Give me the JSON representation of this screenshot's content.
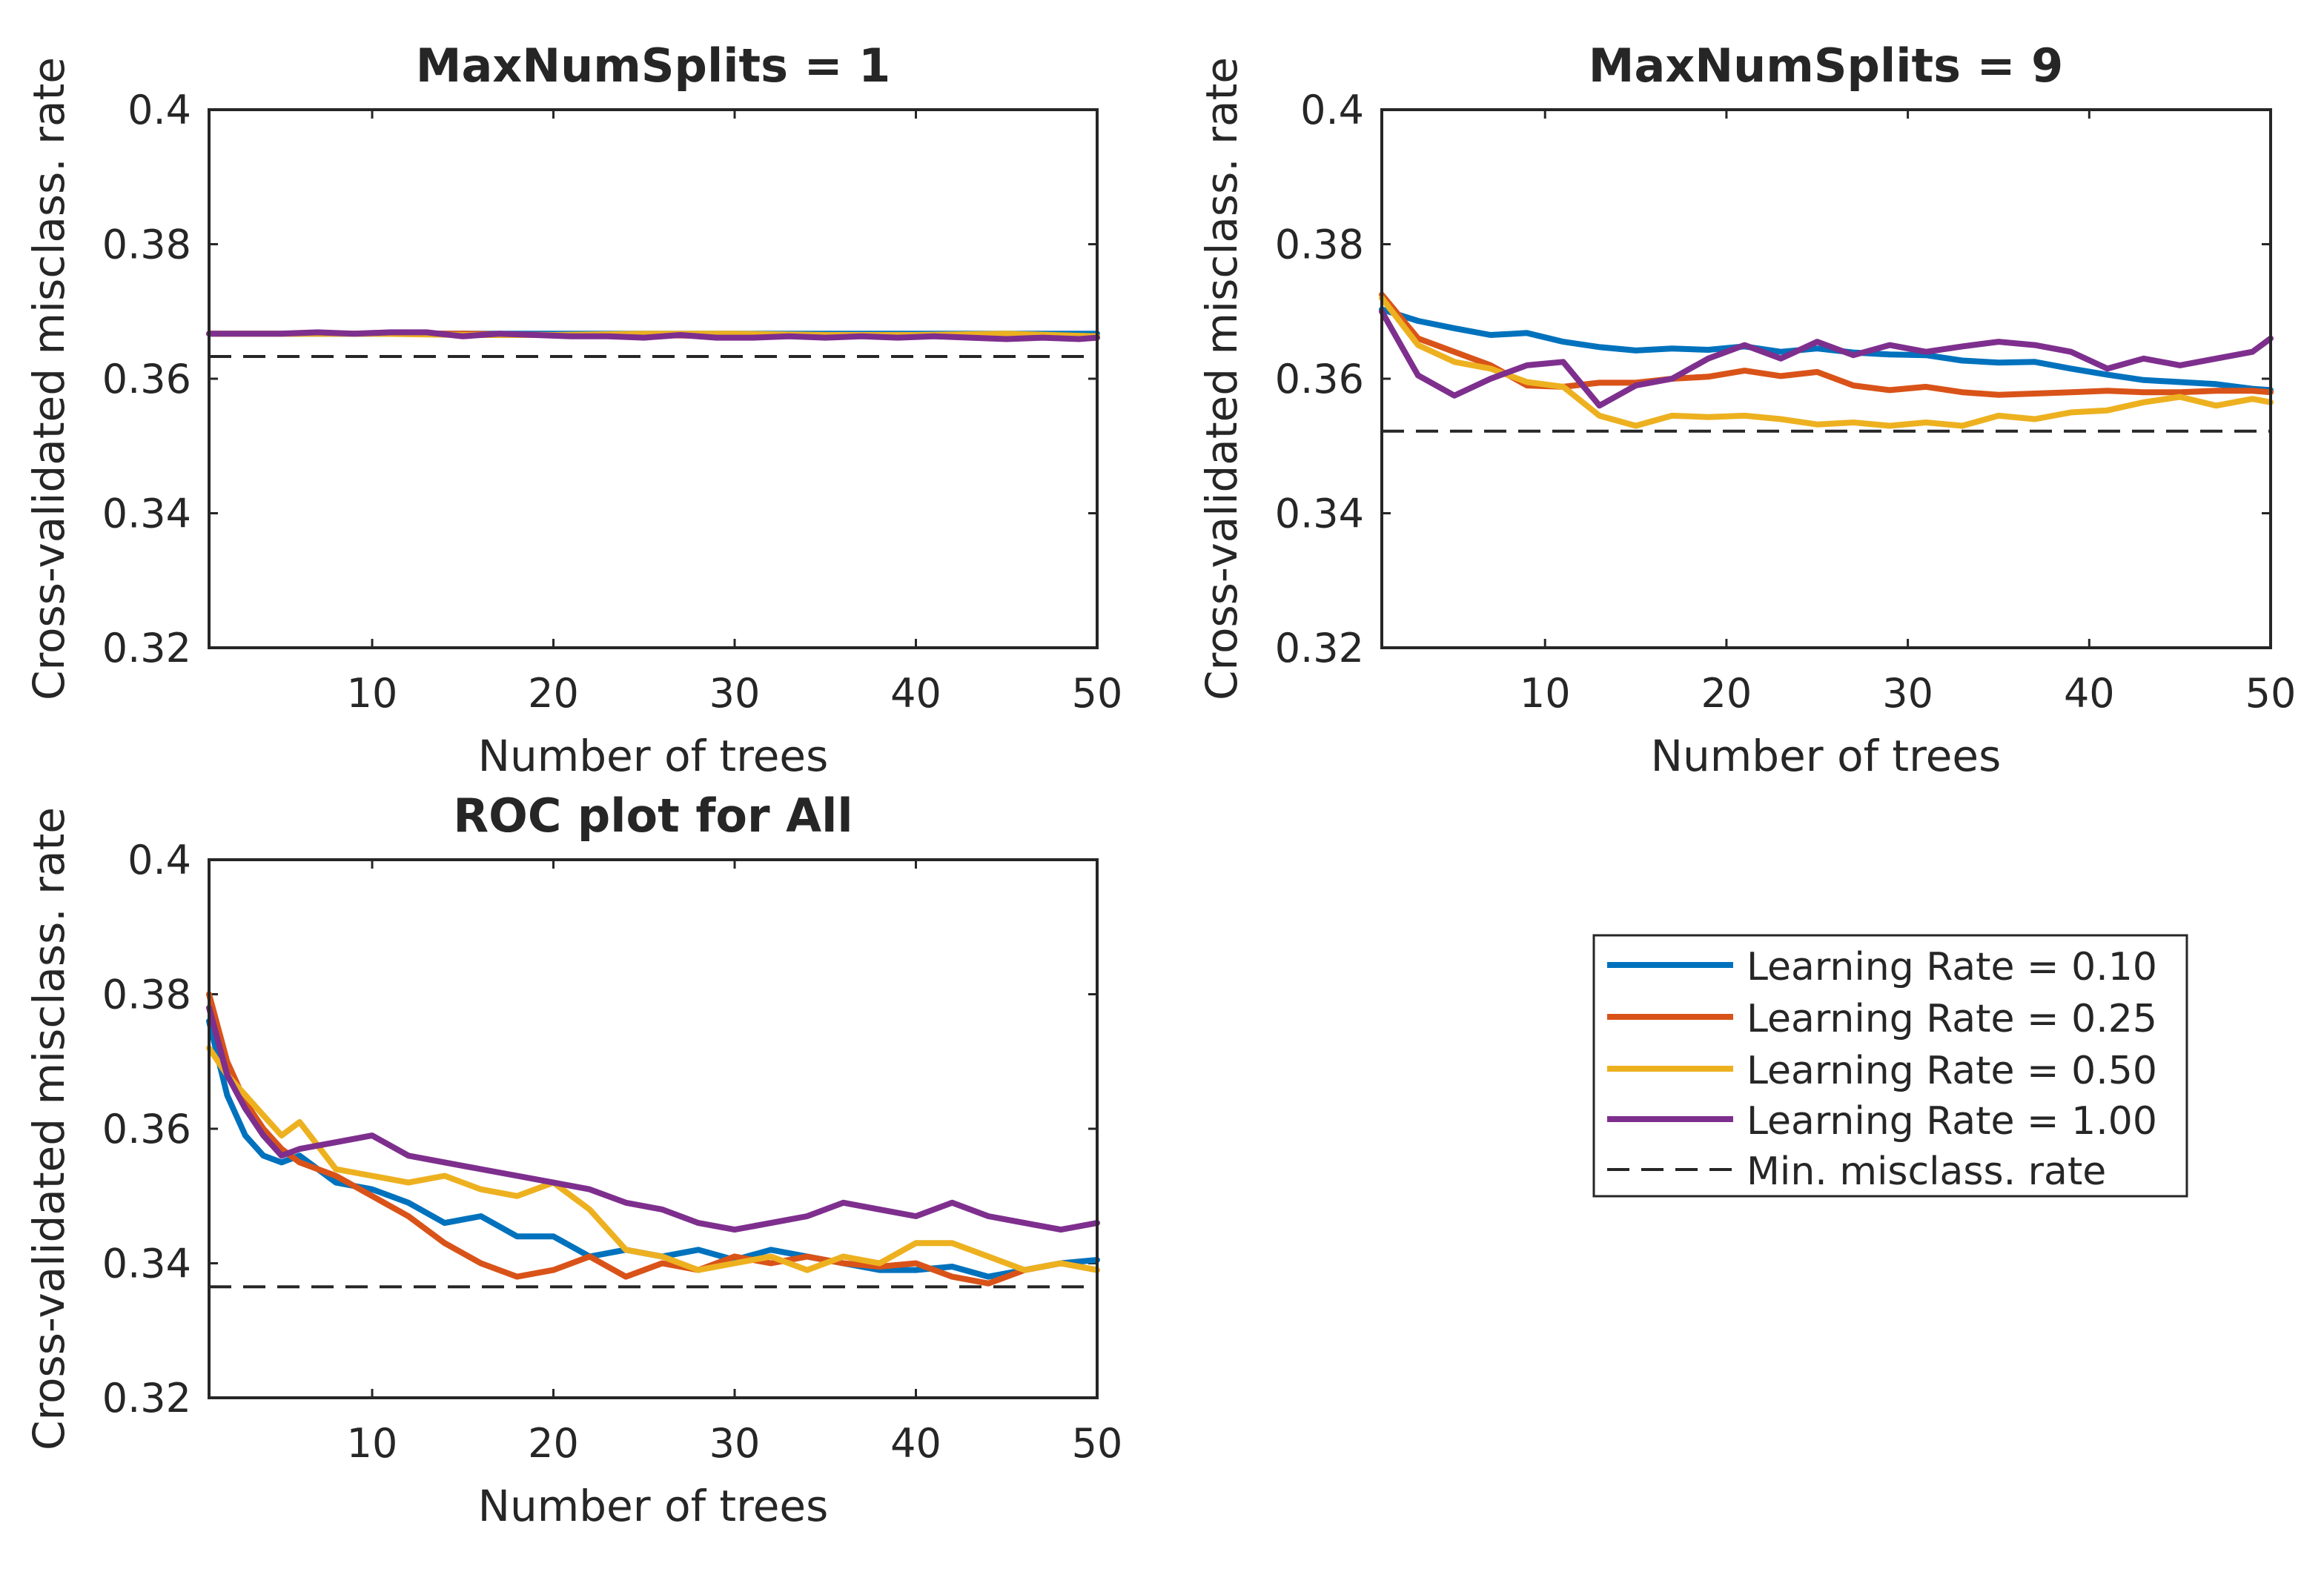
{
  "chart_data": [
    {
      "type": "line",
      "title": "MaxNumSplits = 1",
      "xlabel": "Number of trees",
      "ylabel": "Cross-validated misclass. rate",
      "xlim": [
        1,
        50
      ],
      "ylim": [
        0.32,
        0.4
      ],
      "xticks": [
        10,
        20,
        30,
        40,
        50
      ],
      "yticks": [
        0.32,
        0.34,
        0.36,
        0.38,
        0.4
      ],
      "xtick_labels": [
        "10",
        "20",
        "30",
        "40",
        "50"
      ],
      "ytick_labels": [
        "0.32",
        "0.34",
        "0.36",
        "0.38",
        "0.4"
      ],
      "min_line": 0.3633,
      "series": [
        {
          "name": "Learning Rate = 0.10",
          "color": "#0072BD",
          "x": [
            1,
            5,
            10,
            15,
            20,
            25,
            30,
            35,
            40,
            45,
            50
          ],
          "y": [
            0.3667,
            0.3667,
            0.3667,
            0.3667,
            0.3667,
            0.3667,
            0.3667,
            0.3667,
            0.3667,
            0.3667,
            0.3667
          ]
        },
        {
          "name": "Learning Rate = 0.25",
          "color": "#D95319",
          "x": [
            1,
            5,
            10,
            15,
            20,
            25,
            30,
            35,
            40,
            45,
            50
          ],
          "y": [
            0.3667,
            0.3667,
            0.3667,
            0.3667,
            0.3665,
            0.3665,
            0.3663,
            0.3665,
            0.3665,
            0.3663,
            0.3663
          ]
        },
        {
          "name": "Learning Rate = 0.50",
          "color": "#EDB120",
          "x": [
            1,
            5,
            10,
            15,
            20,
            25,
            30,
            35,
            40,
            45,
            50
          ],
          "y": [
            0.3667,
            0.3667,
            0.3667,
            0.3665,
            0.3665,
            0.3667,
            0.3667,
            0.3665,
            0.3665,
            0.3667,
            0.3663
          ]
        },
        {
          "name": "Learning Rate = 1.00",
          "color": "#7E2F8E",
          "x": [
            1,
            3,
            5,
            7,
            9,
            11,
            13,
            15,
            17,
            19,
            21,
            23,
            25,
            27,
            29,
            31,
            33,
            35,
            37,
            39,
            41,
            43,
            45,
            47,
            49,
            50
          ],
          "y": [
            0.3667,
            0.3667,
            0.3667,
            0.3669,
            0.3667,
            0.3669,
            0.3669,
            0.3663,
            0.3667,
            0.3665,
            0.3663,
            0.3663,
            0.3661,
            0.3665,
            0.3661,
            0.3661,
            0.3663,
            0.3661,
            0.3663,
            0.3661,
            0.3663,
            0.3661,
            0.3659,
            0.3661,
            0.3659,
            0.3661
          ]
        }
      ]
    },
    {
      "type": "line",
      "title": "MaxNumSplits = 9",
      "xlabel": "Number of trees",
      "ylabel": "Cross-validated misclass. rate",
      "xlim": [
        1,
        50
      ],
      "ylim": [
        0.32,
        0.4
      ],
      "xticks": [
        10,
        20,
        30,
        40,
        50
      ],
      "yticks": [
        0.32,
        0.34,
        0.36,
        0.38,
        0.4
      ],
      "xtick_labels": [
        "10",
        "20",
        "30",
        "40",
        "50"
      ],
      "ytick_labels": [
        "0.32",
        "0.34",
        "0.36",
        "0.38",
        "0.4"
      ],
      "min_line": 0.3522,
      "series": [
        {
          "name": "Learning Rate = 0.10",
          "color": "#0072BD",
          "x": [
            1,
            3,
            5,
            7,
            9,
            11,
            13,
            15,
            17,
            19,
            21,
            23,
            25,
            27,
            29,
            31,
            33,
            35,
            37,
            39,
            41,
            43,
            45,
            47,
            49,
            50
          ],
          "y": [
            0.3703,
            0.3686,
            0.3675,
            0.3665,
            0.3668,
            0.3655,
            0.3647,
            0.3642,
            0.3645,
            0.3643,
            0.3648,
            0.364,
            0.3645,
            0.3639,
            0.3636,
            0.3635,
            0.3627,
            0.3624,
            0.3625,
            0.3615,
            0.3606,
            0.3598,
            0.3595,
            0.3592,
            0.3585,
            0.3583
          ]
        },
        {
          "name": "Learning Rate = 0.25",
          "color": "#D95319",
          "x": [
            1,
            3,
            5,
            7,
            9,
            11,
            13,
            15,
            17,
            19,
            21,
            23,
            25,
            27,
            29,
            31,
            33,
            35,
            37,
            39,
            41,
            43,
            45,
            47,
            49,
            50
          ],
          "y": [
            0.3725,
            0.366,
            0.364,
            0.362,
            0.359,
            0.3588,
            0.3594,
            0.3594,
            0.36,
            0.3603,
            0.3612,
            0.3604,
            0.361,
            0.359,
            0.3583,
            0.3588,
            0.358,
            0.3576,
            0.3578,
            0.358,
            0.3582,
            0.358,
            0.358,
            0.3582,
            0.3582,
            0.358
          ]
        },
        {
          "name": "Learning Rate = 0.50",
          "color": "#EDB120",
          "x": [
            1,
            3,
            5,
            7,
            9,
            11,
            13,
            15,
            17,
            19,
            21,
            23,
            25,
            27,
            29,
            31,
            33,
            35,
            37,
            39,
            41,
            43,
            45,
            47,
            49,
            50
          ],
          "y": [
            0.372,
            0.365,
            0.3625,
            0.3615,
            0.3595,
            0.3588,
            0.3545,
            0.353,
            0.3545,
            0.3543,
            0.3545,
            0.354,
            0.3532,
            0.3535,
            0.353,
            0.3535,
            0.353,
            0.3545,
            0.354,
            0.355,
            0.3553,
            0.3565,
            0.3573,
            0.356,
            0.357,
            0.3565
          ]
        },
        {
          "name": "Learning Rate = 1.00",
          "color": "#7E2F8E",
          "x": [
            1,
            3,
            5,
            7,
            9,
            11,
            13,
            15,
            17,
            19,
            21,
            23,
            25,
            27,
            29,
            31,
            33,
            35,
            37,
            39,
            41,
            43,
            45,
            47,
            49,
            50
          ],
          "y": [
            0.37,
            0.3605,
            0.3575,
            0.36,
            0.362,
            0.3625,
            0.356,
            0.359,
            0.36,
            0.363,
            0.365,
            0.363,
            0.3655,
            0.3635,
            0.365,
            0.364,
            0.3648,
            0.3655,
            0.365,
            0.364,
            0.3615,
            0.363,
            0.362,
            0.363,
            0.364,
            0.366
          ]
        }
      ]
    },
    {
      "type": "line",
      "title": "ROC plot for All",
      "xlabel": "Number of trees",
      "ylabel": "Cross-validated misclass. rate",
      "xlim": [
        1,
        50
      ],
      "ylim": [
        0.32,
        0.4
      ],
      "xticks": [
        10,
        20,
        30,
        40,
        50
      ],
      "yticks": [
        0.32,
        0.34,
        0.36,
        0.38,
        0.4
      ],
      "xtick_labels": [
        "10",
        "20",
        "30",
        "40",
        "50"
      ],
      "ytick_labels": [
        "0.32",
        "0.34",
        "0.36",
        "0.38",
        "0.4"
      ],
      "min_line": 0.3365,
      "series": [
        {
          "name": "Learning Rate = 0.10",
          "color": "#0072BD",
          "x": [
            1,
            2,
            3,
            4,
            5,
            6,
            8,
            10,
            12,
            14,
            16,
            18,
            20,
            22,
            24,
            26,
            28,
            30,
            32,
            34,
            36,
            38,
            40,
            42,
            44,
            46,
            48,
            50
          ],
          "y": [
            0.376,
            0.365,
            0.359,
            0.356,
            0.355,
            0.356,
            0.352,
            0.351,
            0.349,
            0.346,
            0.347,
            0.344,
            0.344,
            0.341,
            0.342,
            0.341,
            0.342,
            0.3405,
            0.342,
            0.341,
            0.34,
            0.339,
            0.339,
            0.3395,
            0.338,
            0.339,
            0.34,
            0.3405
          ]
        },
        {
          "name": "Learning Rate = 0.25",
          "color": "#D95319",
          "x": [
            1,
            2,
            3,
            4,
            5,
            6,
            8,
            10,
            12,
            14,
            16,
            18,
            20,
            22,
            24,
            26,
            28,
            30,
            32,
            34,
            36,
            38,
            40,
            42,
            44,
            46,
            48,
            50
          ],
          "y": [
            0.38,
            0.37,
            0.364,
            0.36,
            0.357,
            0.355,
            0.353,
            0.35,
            0.347,
            0.343,
            0.34,
            0.338,
            0.339,
            0.341,
            0.338,
            0.34,
            0.339,
            0.341,
            0.34,
            0.341,
            0.34,
            0.3395,
            0.34,
            0.338,
            0.337,
            0.339,
            0.34,
            0.339
          ]
        },
        {
          "name": "Learning Rate = 0.50",
          "color": "#EDB120",
          "x": [
            1,
            2,
            3,
            4,
            5,
            6,
            8,
            10,
            12,
            14,
            16,
            18,
            20,
            22,
            24,
            26,
            28,
            30,
            32,
            34,
            36,
            38,
            40,
            42,
            44,
            46,
            48,
            50
          ],
          "y": [
            0.372,
            0.368,
            0.365,
            0.362,
            0.359,
            0.361,
            0.354,
            0.353,
            0.352,
            0.353,
            0.351,
            0.35,
            0.352,
            0.348,
            0.342,
            0.341,
            0.339,
            0.34,
            0.341,
            0.339,
            0.341,
            0.34,
            0.343,
            0.343,
            0.341,
            0.339,
            0.34,
            0.339
          ]
        },
        {
          "name": "Learning Rate = 1.00",
          "color": "#7E2F8E",
          "x": [
            1,
            2,
            3,
            4,
            5,
            6,
            8,
            10,
            12,
            14,
            16,
            18,
            20,
            22,
            24,
            26,
            28,
            30,
            32,
            34,
            36,
            38,
            40,
            42,
            44,
            46,
            48,
            50
          ],
          "y": [
            0.378,
            0.368,
            0.363,
            0.359,
            0.356,
            0.357,
            0.358,
            0.359,
            0.356,
            0.355,
            0.354,
            0.353,
            0.352,
            0.351,
            0.349,
            0.348,
            0.346,
            0.345,
            0.346,
            0.347,
            0.349,
            0.348,
            0.347,
            0.349,
            0.347,
            0.346,
            0.345,
            0.346
          ]
        }
      ]
    }
  ],
  "legend": {
    "placement": "bottom-right",
    "entries": [
      {
        "label": "Learning Rate = 0.10",
        "color": "#0072BD",
        "style": "solid"
      },
      {
        "label": "Learning Rate = 0.25",
        "color": "#D95319",
        "style": "solid"
      },
      {
        "label": "Learning Rate = 0.50",
        "color": "#EDB120",
        "style": "solid"
      },
      {
        "label": "Learning Rate = 1.00",
        "color": "#7E2F8E",
        "style": "solid"
      },
      {
        "label": "Min. misclass. rate",
        "color": "#262626",
        "style": "dashed"
      }
    ]
  }
}
